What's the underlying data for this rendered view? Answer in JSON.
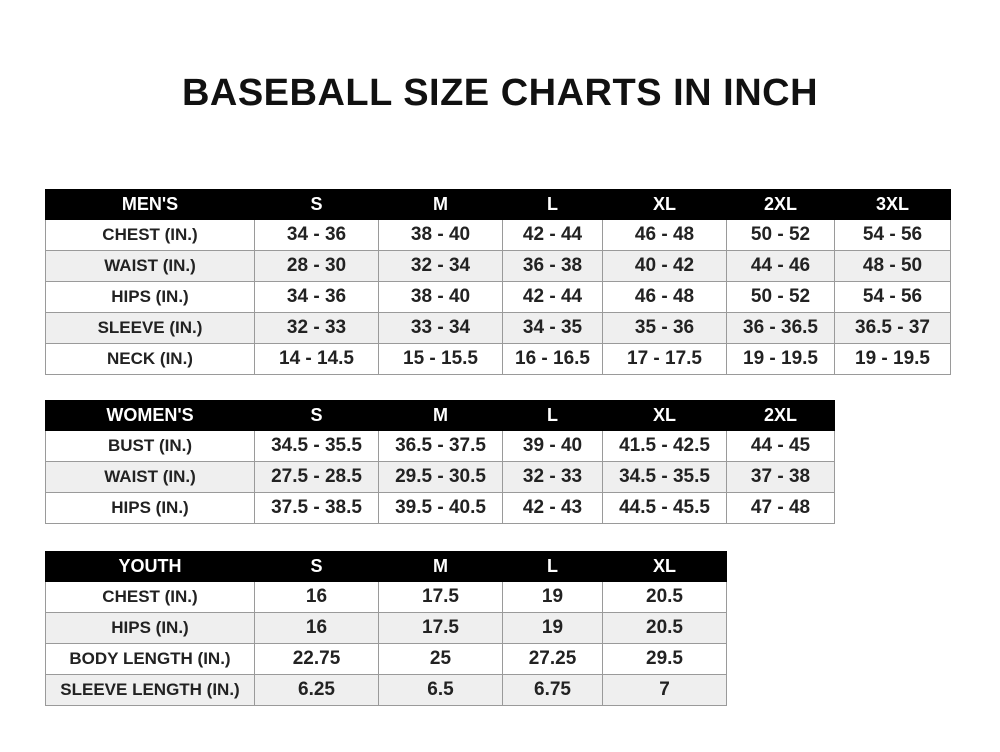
{
  "title": "BASEBALL SIZE CHARTS IN INCH",
  "men": {
    "header": [
      "MEN'S",
      "S",
      "M",
      "L",
      "XL",
      "2XL",
      "3XL"
    ],
    "rows": [
      [
        "CHEST (IN.)",
        "34 - 36",
        "38 - 40",
        "42 - 44",
        "46 - 48",
        "50 - 52",
        "54 - 56"
      ],
      [
        "WAIST (IN.)",
        "28 - 30",
        "32 - 34",
        "36 - 38",
        "40 - 42",
        "44 - 46",
        "48 - 50"
      ],
      [
        "HIPS (IN.)",
        "34 - 36",
        "38 - 40",
        "42 - 44",
        "46 - 48",
        "50 - 52",
        "54 - 56"
      ],
      [
        "SLEEVE (IN.)",
        "32 - 33",
        "33 - 34",
        "34 - 35",
        "35 - 36",
        "36 - 36.5",
        "36.5 - 37"
      ],
      [
        "NECK (IN.)",
        "14 - 14.5",
        "15 - 15.5",
        "16 - 16.5",
        "17 - 17.5",
        "19 - 19.5",
        "19 - 19.5"
      ]
    ]
  },
  "women": {
    "header": [
      "WOMEN'S",
      "S",
      "M",
      "L",
      "XL",
      "2XL"
    ],
    "rows": [
      [
        "BUST (IN.)",
        "34.5 - 35.5",
        "36.5 - 37.5",
        "39 - 40",
        "41.5 - 42.5",
        "44 - 45"
      ],
      [
        "WAIST (IN.)",
        "27.5 - 28.5",
        "29.5 - 30.5",
        "32 - 33",
        "34.5 - 35.5",
        "37 - 38"
      ],
      [
        "HIPS (IN.)",
        "37.5 - 38.5",
        "39.5 - 40.5",
        "42 - 43",
        "44.5 - 45.5",
        "47 - 48"
      ]
    ]
  },
  "youth": {
    "header": [
      "YOUTH",
      "S",
      "M",
      "L",
      "XL"
    ],
    "rows": [
      [
        "CHEST (IN.)",
        "16",
        "17.5",
        "19",
        "20.5"
      ],
      [
        "HIPS (IN.)",
        "16",
        "17.5",
        "19",
        "20.5"
      ],
      [
        "BODY LENGTH (IN.)",
        "22.75",
        "25",
        "27.25",
        "29.5"
      ],
      [
        "SLEEVE LENGTH (IN.)",
        "6.25",
        "6.5",
        "6.75",
        "7"
      ]
    ]
  },
  "colors": {
    "header_bg": "#000000",
    "header_text": "#ffffff",
    "alt_row_bg": "#efefef"
  }
}
